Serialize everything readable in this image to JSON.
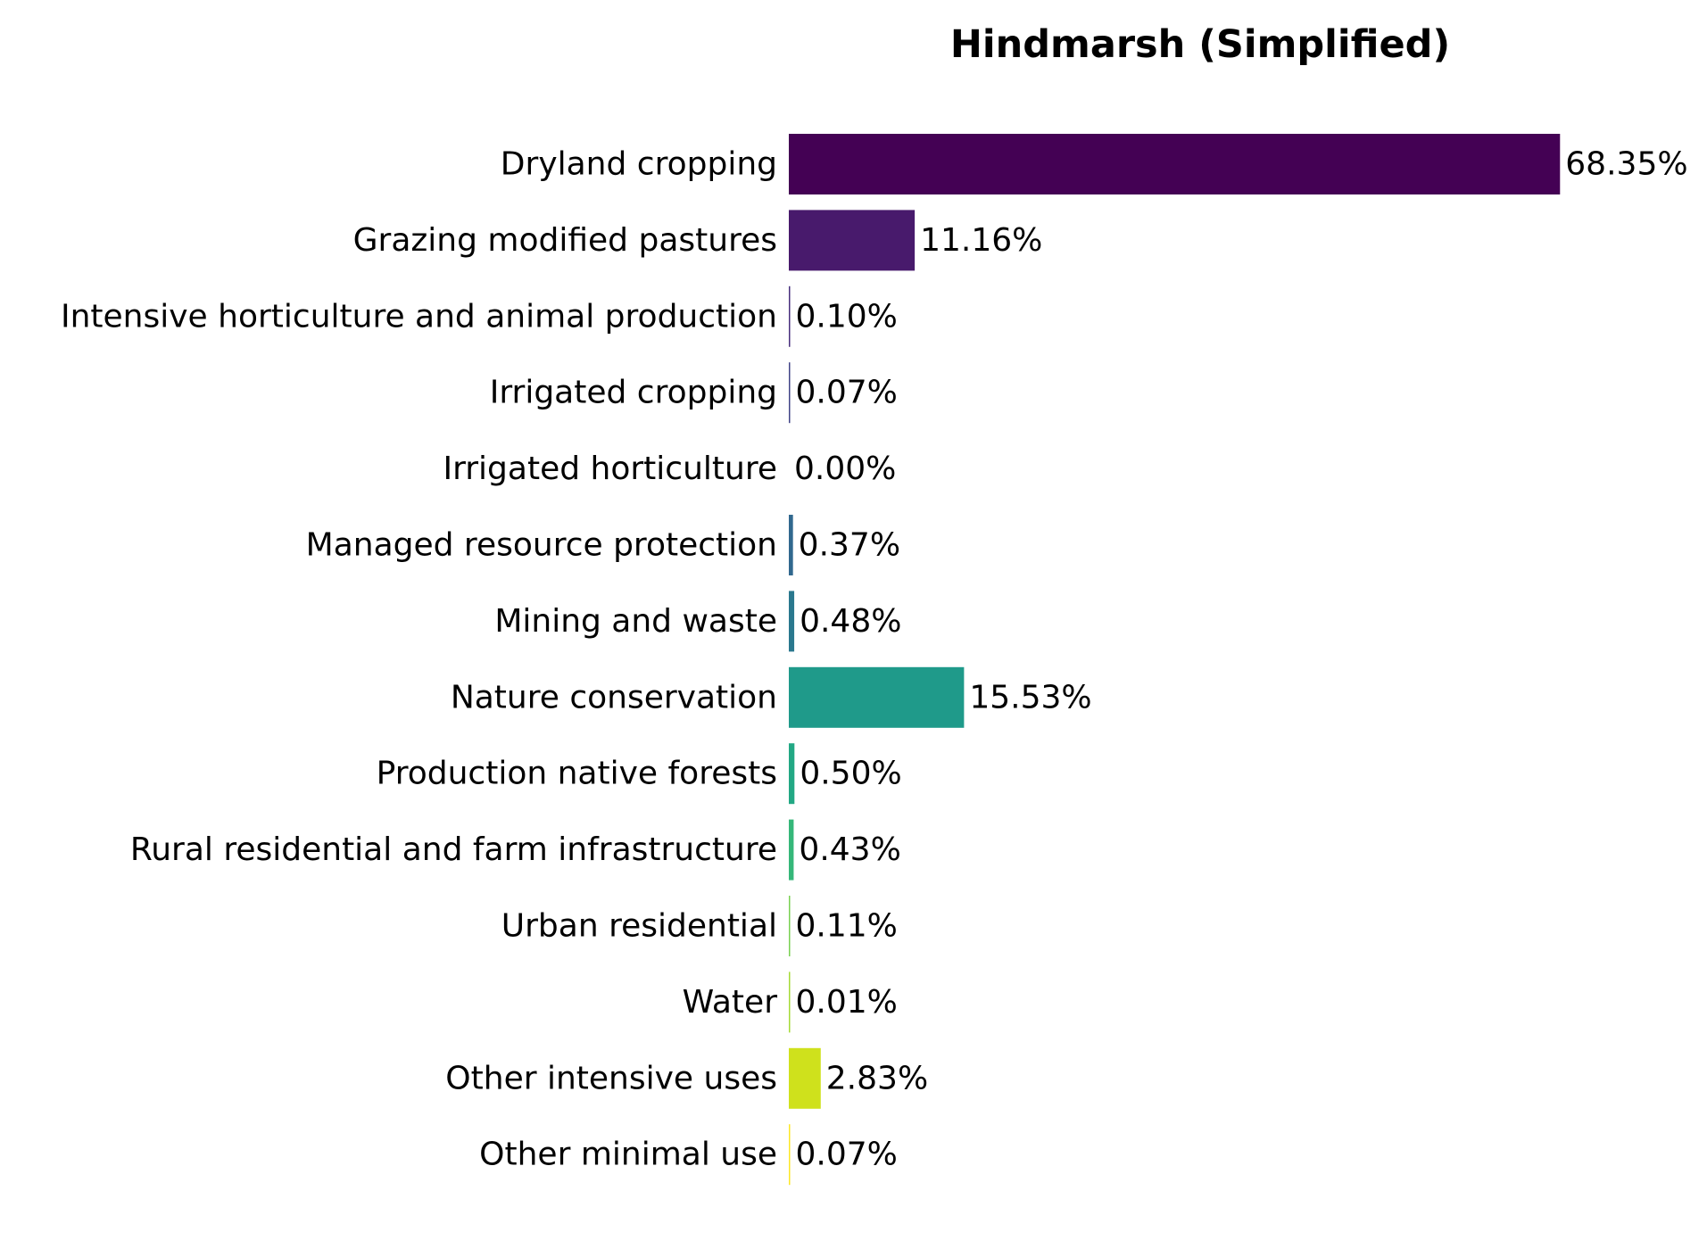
{
  "chart_data": {
    "type": "bar",
    "orientation": "horizontal",
    "title": "Hindmarsh (Simplified)",
    "xlabel": "",
    "ylabel": "",
    "unit": "%",
    "grid": false,
    "legend": "none",
    "categories": [
      "Dryland cropping",
      "Grazing modified pastures",
      "Intensive horticulture and animal production",
      "Irrigated cropping",
      "Irrigated horticulture",
      "Managed resource protection",
      "Mining and waste",
      "Nature conservation",
      "Production native forests",
      "Rural residential and farm infrastructure",
      "Urban residential",
      "Water",
      "Other intensive uses",
      "Other minimal use"
    ],
    "values": [
      68.35,
      11.16,
      0.1,
      0.07,
      0.0,
      0.37,
      0.48,
      15.53,
      0.5,
      0.43,
      0.11,
      0.01,
      2.83,
      0.07
    ],
    "value_labels": [
      "68.35%",
      "11.16%",
      "0.10%",
      "0.07%",
      "0.00%",
      "0.37%",
      "0.48%",
      "15.53%",
      "0.50%",
      "0.43%",
      "0.11%",
      "0.01%",
      "2.83%",
      "0.07%"
    ],
    "colors": [
      "#440154",
      "#481a6c",
      "#472f7d",
      "#414487",
      "#39568c",
      "#31688e",
      "#2a788e",
      "#23888e",
      "#1f988b",
      "#22a884",
      "#35b779",
      "#54c568",
      "#7ad151",
      "#a5db36"
    ],
    "colors_note_override": [
      "#440154",
      "#481a6c",
      "#472f7d",
      "#414487",
      "#39568c",
      "#31688e",
      "#2a788e",
      "#1f9a8a",
      "#22a884",
      "#35b779",
      "#7ad151",
      "#a5db36",
      "#cfe11c",
      "#fde725"
    ],
    "xlim": [
      0,
      75
    ]
  }
}
